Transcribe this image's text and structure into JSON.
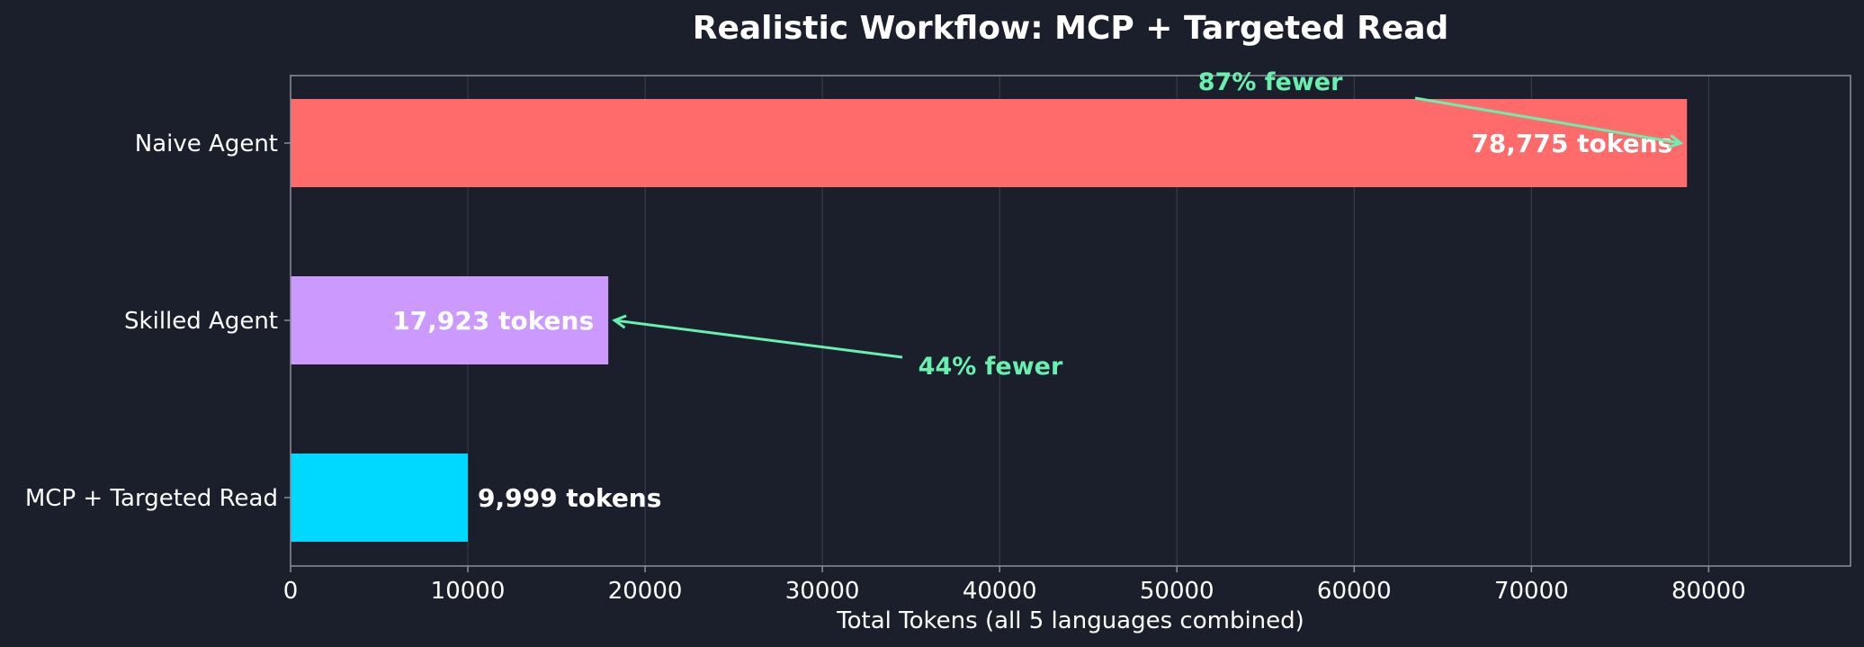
{
  "chart_data": {
    "type": "bar",
    "orientation": "horizontal",
    "title": "Realistic Workflow: MCP + Targeted Read",
    "xlabel": "Total Tokens (all 5 languages combined)",
    "ylabel": "",
    "xlim": [
      0,
      88000
    ],
    "xticks": [
      0,
      10000,
      20000,
      30000,
      40000,
      50000,
      60000,
      70000,
      80000
    ],
    "grid": "vertical",
    "categories": [
      "Naive Agent",
      "Skilled Agent",
      "MCP + Targeted Read"
    ],
    "values": [
      78775,
      17923,
      9999
    ],
    "value_labels": [
      "78,775 tokens",
      "17,923 tokens",
      "9,999 tokens"
    ],
    "colors": [
      "#ff6b6b",
      "#cc99ff",
      "#00d9ff"
    ],
    "annotations": [
      {
        "text": "87% fewer",
        "text_x": 55000,
        "text_y": "Naive Agent",
        "arrow_to_category": "Naive Agent",
        "arrow_to_x": 78775
      },
      {
        "text": "44% fewer",
        "text_x": 35000,
        "text_y": "Skilled Agent",
        "arrow_to_category": "Skilled Agent",
        "arrow_to_x": 17923
      }
    ],
    "annotation_color": "#69f0ae"
  },
  "theme": {
    "background": "#1b1f2c",
    "axis_color": "#8a8f9c",
    "grid_color": "#3a3f4e",
    "text_color": "#ffffff"
  }
}
